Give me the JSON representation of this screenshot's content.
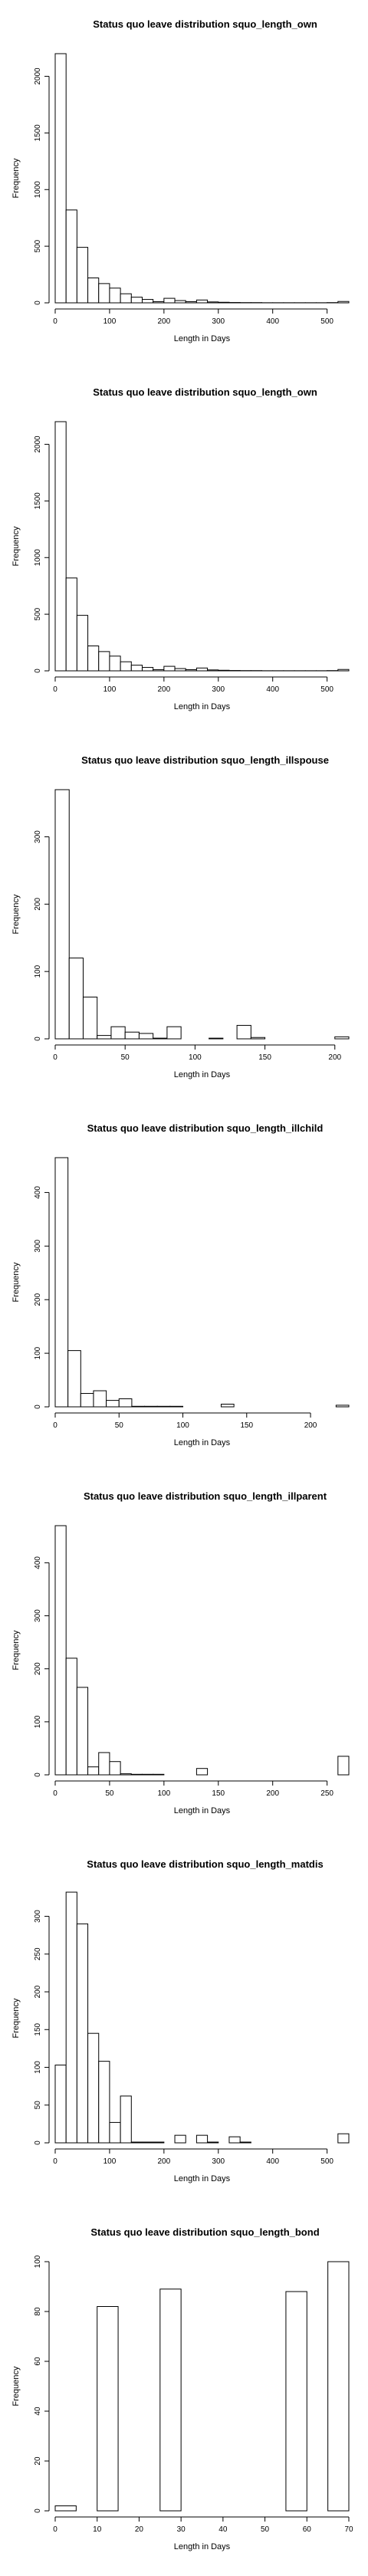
{
  "chart_data": [
    {
      "type": "histogram",
      "title": "Status quo leave distribution squo_length_own",
      "xlabel": "Length in Days",
      "ylabel": "Frequency",
      "xlim": [
        0,
        540
      ],
      "ylim": [
        0,
        2200
      ],
      "xticks": [
        0,
        100,
        200,
        300,
        400,
        500
      ],
      "yticks": [
        0,
        500,
        1000,
        1500,
        2000
      ],
      "bins": [
        [
          0,
          20,
          2200
        ],
        [
          20,
          40,
          820
        ],
        [
          40,
          60,
          490
        ],
        [
          60,
          80,
          220
        ],
        [
          80,
          100,
          170
        ],
        [
          100,
          120,
          130
        ],
        [
          120,
          140,
          80
        ],
        [
          140,
          160,
          50
        ],
        [
          160,
          180,
          30
        ],
        [
          180,
          200,
          10
        ],
        [
          200,
          220,
          40
        ],
        [
          220,
          240,
          20
        ],
        [
          240,
          260,
          10
        ],
        [
          260,
          280,
          25
        ],
        [
          280,
          300,
          8
        ],
        [
          300,
          320,
          5
        ],
        [
          320,
          340,
          3
        ],
        [
          340,
          360,
          2
        ],
        [
          360,
          380,
          2
        ],
        [
          380,
          400,
          1
        ],
        [
          400,
          420,
          1
        ],
        [
          420,
          440,
          1
        ],
        [
          440,
          460,
          1
        ],
        [
          460,
          480,
          1
        ],
        [
          480,
          500,
          1
        ],
        [
          500,
          520,
          2
        ],
        [
          520,
          540,
          12
        ]
      ]
    },
    {
      "type": "histogram",
      "title": "Status quo leave distribution squo_length_own",
      "xlabel": "Length in Days",
      "ylabel": "Frequency",
      "xlim": [
        0,
        540
      ],
      "ylim": [
        0,
        2200
      ],
      "xticks": [
        0,
        100,
        200,
        300,
        400,
        500
      ],
      "yticks": [
        0,
        500,
        1000,
        1500,
        2000
      ],
      "bins": [
        [
          0,
          20,
          2200
        ],
        [
          20,
          40,
          820
        ],
        [
          40,
          60,
          490
        ],
        [
          60,
          80,
          220
        ],
        [
          80,
          100,
          170
        ],
        [
          100,
          120,
          130
        ],
        [
          120,
          140,
          80
        ],
        [
          140,
          160,
          50
        ],
        [
          160,
          180,
          30
        ],
        [
          180,
          200,
          10
        ],
        [
          200,
          220,
          40
        ],
        [
          220,
          240,
          20
        ],
        [
          240,
          260,
          10
        ],
        [
          260,
          280,
          25
        ],
        [
          280,
          300,
          8
        ],
        [
          300,
          320,
          5
        ],
        [
          320,
          340,
          3
        ],
        [
          340,
          360,
          2
        ],
        [
          360,
          380,
          2
        ],
        [
          380,
          400,
          1
        ],
        [
          400,
          420,
          1
        ],
        [
          420,
          440,
          1
        ],
        [
          440,
          460,
          1
        ],
        [
          460,
          480,
          1
        ],
        [
          480,
          500,
          1
        ],
        [
          500,
          520,
          2
        ],
        [
          520,
          540,
          12
        ]
      ]
    },
    {
      "type": "histogram",
      "title": "Status quo leave distribution squo_length_illspouse",
      "xlabel": "Length in Days",
      "ylabel": "Frequency",
      "xlim": [
        0,
        210
      ],
      "ylim": [
        0,
        370
      ],
      "xticks": [
        0,
        50,
        100,
        150,
        200
      ],
      "yticks": [
        0,
        100,
        200,
        300
      ],
      "bins": [
        [
          0,
          10,
          370
        ],
        [
          10,
          20,
          120
        ],
        [
          20,
          30,
          62
        ],
        [
          30,
          40,
          5
        ],
        [
          40,
          50,
          18
        ],
        [
          50,
          60,
          10
        ],
        [
          60,
          70,
          8
        ],
        [
          70,
          80,
          1
        ],
        [
          80,
          90,
          18
        ],
        [
          90,
          100,
          0
        ],
        [
          100,
          110,
          0
        ],
        [
          110,
          120,
          1
        ],
        [
          120,
          130,
          0
        ],
        [
          130,
          140,
          20
        ],
        [
          140,
          150,
          2
        ],
        [
          150,
          160,
          0
        ],
        [
          160,
          170,
          0
        ],
        [
          170,
          180,
          0
        ],
        [
          180,
          190,
          0
        ],
        [
          190,
          200,
          0
        ],
        [
          200,
          210,
          3
        ]
      ]
    },
    {
      "type": "histogram",
      "title": "Status quo leave distribution squo_length_illchild",
      "xlabel": "Length in Days",
      "ylabel": "Frequency",
      "xlim": [
        0,
        230
      ],
      "ylim": [
        0,
        465
      ],
      "xticks": [
        0,
        50,
        100,
        150,
        200
      ],
      "yticks": [
        0,
        100,
        200,
        300,
        400
      ],
      "bins": [
        [
          0,
          10,
          465
        ],
        [
          10,
          20,
          105
        ],
        [
          20,
          30,
          25
        ],
        [
          30,
          40,
          30
        ],
        [
          40,
          50,
          12
        ],
        [
          50,
          60,
          15
        ],
        [
          60,
          70,
          1
        ],
        [
          70,
          80,
          1
        ],
        [
          80,
          90,
          1
        ],
        [
          90,
          100,
          1
        ],
        [
          100,
          110,
          0
        ],
        [
          110,
          120,
          0
        ],
        [
          120,
          130,
          0
        ],
        [
          130,
          140,
          5
        ],
        [
          140,
          150,
          0
        ],
        [
          150,
          160,
          0
        ],
        [
          160,
          170,
          0
        ],
        [
          170,
          180,
          0
        ],
        [
          180,
          190,
          0
        ],
        [
          190,
          200,
          0
        ],
        [
          200,
          210,
          0
        ],
        [
          210,
          220,
          0
        ],
        [
          220,
          230,
          3
        ]
      ]
    },
    {
      "type": "histogram",
      "title": "Status quo leave distribution squo_length_illparent",
      "xlabel": "Length in Days",
      "ylabel": "Frequency",
      "xlim": [
        0,
        270
      ],
      "ylim": [
        0,
        470
      ],
      "xticks": [
        0,
        50,
        100,
        150,
        200,
        250
      ],
      "yticks": [
        0,
        100,
        200,
        300,
        400
      ],
      "bins": [
        [
          0,
          10,
          470
        ],
        [
          10,
          20,
          220
        ],
        [
          20,
          30,
          165
        ],
        [
          30,
          40,
          15
        ],
        [
          40,
          50,
          42
        ],
        [
          50,
          60,
          25
        ],
        [
          60,
          70,
          2
        ],
        [
          70,
          80,
          1
        ],
        [
          80,
          90,
          1
        ],
        [
          90,
          100,
          1
        ],
        [
          100,
          110,
          0
        ],
        [
          110,
          120,
          0
        ],
        [
          120,
          130,
          0
        ],
        [
          130,
          140,
          12
        ],
        [
          140,
          150,
          0
        ],
        [
          150,
          160,
          0
        ],
        [
          160,
          170,
          0
        ],
        [
          170,
          180,
          0
        ],
        [
          180,
          190,
          0
        ],
        [
          190,
          200,
          0
        ],
        [
          200,
          210,
          0
        ],
        [
          210,
          220,
          0
        ],
        [
          220,
          230,
          0
        ],
        [
          230,
          240,
          0
        ],
        [
          240,
          250,
          0
        ],
        [
          250,
          260,
          0
        ],
        [
          260,
          270,
          35
        ]
      ]
    },
    {
      "type": "histogram",
      "title": "Status quo leave distribution squo_length_matdis",
      "xlabel": "Length in Days",
      "ylabel": "Frequency",
      "xlim": [
        0,
        540
      ],
      "ylim": [
        0,
        330
      ],
      "xticks": [
        0,
        100,
        200,
        300,
        400,
        500
      ],
      "yticks": [
        0,
        50,
        100,
        150,
        200,
        250,
        300
      ],
      "bins": [
        [
          0,
          20,
          103
        ],
        [
          20,
          40,
          332
        ],
        [
          40,
          60,
          290
        ],
        [
          60,
          80,
          145
        ],
        [
          80,
          100,
          108
        ],
        [
          100,
          120,
          27
        ],
        [
          120,
          140,
          62
        ],
        [
          140,
          160,
          1
        ],
        [
          160,
          180,
          1
        ],
        [
          180,
          200,
          1
        ],
        [
          200,
          220,
          0
        ],
        [
          220,
          240,
          10
        ],
        [
          240,
          260,
          0
        ],
        [
          260,
          280,
          10
        ],
        [
          280,
          300,
          1
        ],
        [
          300,
          320,
          0
        ],
        [
          320,
          340,
          8
        ],
        [
          340,
          360,
          1
        ],
        [
          360,
          380,
          0
        ],
        [
          380,
          400,
          0
        ],
        [
          400,
          420,
          0
        ],
        [
          420,
          440,
          0
        ],
        [
          440,
          460,
          0
        ],
        [
          460,
          480,
          0
        ],
        [
          480,
          500,
          0
        ],
        [
          500,
          520,
          0
        ],
        [
          520,
          540,
          12
        ]
      ]
    },
    {
      "type": "histogram",
      "title": "Status quo leave distribution squo_length_bond",
      "xlabel": "Length in Days",
      "ylabel": "Frequency",
      "xlim": [
        0,
        70
      ],
      "ylim": [
        0,
        100
      ],
      "xticks": [
        0,
        10,
        20,
        30,
        40,
        50,
        60,
        70
      ],
      "yticks": [
        0,
        20,
        40,
        60,
        80,
        100
      ],
      "bins": [
        [
          0,
          5,
          2
        ],
        [
          5,
          10,
          0
        ],
        [
          10,
          15,
          82
        ],
        [
          15,
          20,
          0
        ],
        [
          20,
          25,
          0
        ],
        [
          25,
          30,
          89
        ],
        [
          30,
          35,
          0
        ],
        [
          35,
          40,
          0
        ],
        [
          40,
          45,
          0
        ],
        [
          45,
          50,
          0
        ],
        [
          50,
          55,
          0
        ],
        [
          55,
          60,
          88
        ],
        [
          60,
          65,
          0
        ],
        [
          65,
          70,
          100
        ]
      ]
    }
  ]
}
